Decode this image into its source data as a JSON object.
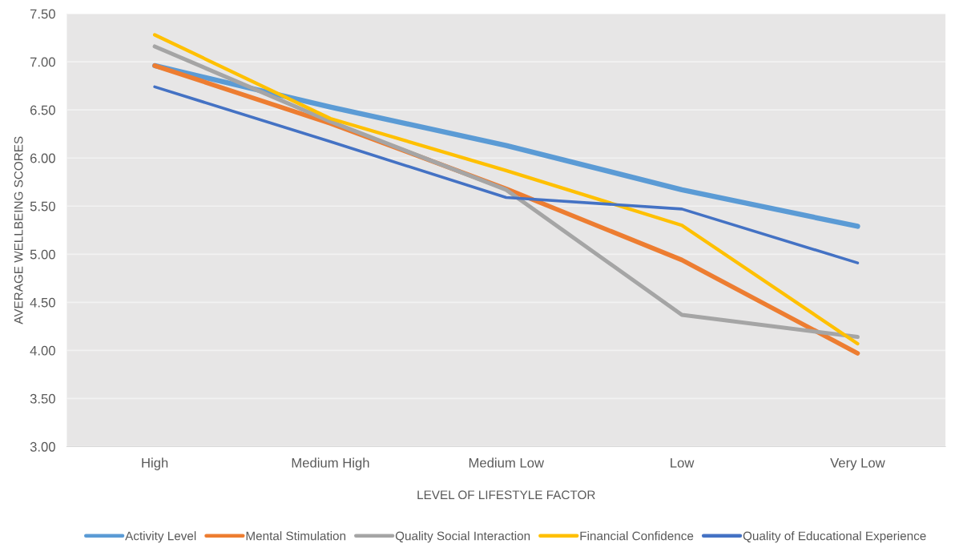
{
  "chart_data": {
    "type": "line",
    "xlabel": "LEVEL OF LIFESTYLE FACTOR",
    "ylabel": "AVERAGE WELLBEING SCORES",
    "categories": [
      "High",
      "Medium High",
      "Medium Low",
      "Low",
      "Very Low"
    ],
    "series": [
      {
        "name": "Activity Level",
        "color": "#5b9bd5",
        "values": [
          6.96,
          6.53,
          6.13,
          5.67,
          5.29
        ]
      },
      {
        "name": "Mental Stimulation",
        "color": "#ed7d31",
        "values": [
          6.96,
          6.36,
          5.68,
          4.94,
          3.97
        ]
      },
      {
        "name": "Quality Social Interaction",
        "color": "#a5a5a5",
        "values": [
          7.16,
          6.38,
          5.67,
          4.37,
          4.14
        ]
      },
      {
        "name": "Financial Confidence",
        "color": "#ffc000",
        "values": [
          7.28,
          6.41,
          5.87,
          5.3,
          4.07
        ]
      },
      {
        "name": "Quality of Educational Experience",
        "color": "#4472c4",
        "values": [
          6.74,
          6.17,
          5.59,
          5.47,
          4.91
        ]
      }
    ],
    "ylim": [
      3.0,
      7.5
    ],
    "yticks": [
      {
        "value": 3.0,
        "label": "3.00"
      },
      {
        "value": 3.5,
        "label": "3.50"
      },
      {
        "value": 4.0,
        "label": "4.00"
      },
      {
        "value": 4.5,
        "label": "4.50"
      },
      {
        "value": 5.0,
        "label": "5.00"
      },
      {
        "value": 5.5,
        "label": "5.50"
      },
      {
        "value": 6.0,
        "label": "6.00"
      },
      {
        "value": 6.5,
        "label": "6.50"
      },
      {
        "value": 7.0,
        "label": "7.00"
      },
      {
        "value": 7.5,
        "label": "7.50"
      }
    ],
    "grid": "y",
    "legend": "bottom",
    "marker": "none",
    "line_style": "solid"
  }
}
